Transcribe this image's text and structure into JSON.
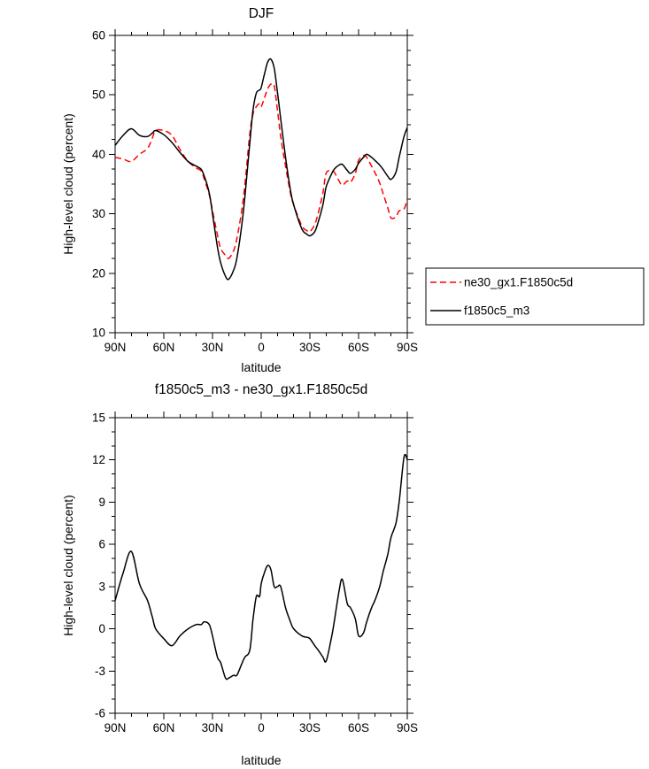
{
  "page": {
    "background": "#ffffff"
  },
  "chart_data": [
    {
      "type": "line",
      "title": "DJF",
      "xlabel": "latitude",
      "ylabel": "High-level cloud (percent)",
      "xlim": [
        90,
        -90
      ],
      "ylim": [
        10,
        60
      ],
      "x_ticks": [
        90,
        60,
        30,
        0,
        -30,
        -60,
        -90
      ],
      "x_tick_labels": [
        "90N",
        "60N",
        "30N",
        "0",
        "30S",
        "60S",
        "90S"
      ],
      "x_minor_step": 10,
      "y_ticks": [
        10,
        20,
        30,
        40,
        50,
        60
      ],
      "y_tick_labels": [
        "10",
        "20",
        "30",
        "40",
        "50",
        "60"
      ],
      "y_minor_step": 2.5,
      "grid": false,
      "legend": {
        "position": "outside-right",
        "entries": [
          "ne30_gx1.F1850c5d",
          "f1850c5_m3"
        ]
      },
      "x": [
        90,
        85,
        80,
        75,
        70,
        67,
        65,
        60,
        55,
        50,
        45,
        40,
        37,
        35,
        32,
        30,
        27,
        25,
        22,
        20,
        17,
        15,
        12,
        10,
        7,
        5,
        3,
        1,
        0,
        -2,
        -4,
        -6,
        -8,
        -10,
        -12,
        -15,
        -18,
        -20,
        -25,
        -28,
        -30,
        -33,
        -35,
        -38,
        -40,
        -43,
        -45,
        -48,
        -50,
        -53,
        -55,
        -58,
        -60,
        -63,
        -65,
        -68,
        -70,
        -73,
        -75,
        -78,
        -80,
        -83,
        -85,
        -88,
        -90
      ],
      "series": [
        {
          "name": "ne30_gx1.F1850c5d",
          "color": "#ff0000",
          "dash": "7,4",
          "values": [
            39.5,
            39.2,
            38.8,
            40.0,
            41.0,
            42.8,
            44.0,
            44.0,
            43.2,
            40.8,
            38.8,
            37.7,
            37.2,
            35.8,
            33.2,
            30.5,
            26.5,
            24.2,
            23.0,
            22.5,
            23.8,
            25.8,
            30.5,
            35.0,
            43.5,
            46.8,
            48.0,
            48.5,
            48.0,
            49.5,
            51.0,
            51.8,
            51.5,
            47.5,
            43.0,
            38.0,
            33.5,
            31.5,
            28.0,
            27.2,
            27.0,
            28.2,
            30.0,
            33.5,
            36.8,
            37.3,
            37.0,
            35.5,
            34.8,
            35.5,
            35.3,
            36.8,
            39.0,
            39.8,
            39.5,
            38.0,
            37.0,
            35.2,
            33.5,
            31.0,
            29.3,
            29.5,
            30.5,
            30.8,
            32.5
          ]
        },
        {
          "name": "f1850c5_m3",
          "color": "#000000",
          "dash": "",
          "values": [
            41.5,
            43.2,
            44.3,
            43.2,
            43.0,
            43.6,
            44.0,
            43.3,
            42.0,
            40.3,
            38.8,
            38.0,
            37.5,
            36.3,
            33.5,
            30.0,
            24.5,
            21.8,
            19.5,
            19.0,
            20.5,
            22.5,
            28.0,
            33.0,
            42.0,
            47.5,
            50.3,
            50.8,
            51.2,
            53.5,
            55.5,
            56.0,
            54.5,
            50.5,
            46.0,
            39.5,
            34.0,
            31.5,
            27.5,
            26.6,
            26.3,
            27.0,
            28.5,
            31.5,
            34.5,
            36.5,
            37.5,
            38.2,
            38.3,
            37.3,
            36.8,
            37.5,
            38.5,
            39.5,
            40.0,
            39.5,
            39.0,
            38.2,
            37.5,
            36.3,
            35.8,
            37.0,
            39.5,
            43.0,
            44.5
          ]
        }
      ]
    },
    {
      "type": "line",
      "title": "f1850c5_m3 - ne30_gx1.F1850c5d",
      "xlabel": "latitude",
      "ylabel": "High-level cloud (percent)",
      "xlim": [
        90,
        -90
      ],
      "ylim": [
        -6,
        15
      ],
      "x_ticks": [
        90,
        60,
        30,
        0,
        -30,
        -60,
        -90
      ],
      "x_tick_labels": [
        "90N",
        "60N",
        "30N",
        "0",
        "30S",
        "60S",
        "90S"
      ],
      "x_minor_step": 10,
      "y_ticks": [
        -6,
        -3,
        0,
        3,
        6,
        9,
        12,
        15
      ],
      "y_tick_labels": [
        "-6",
        "-3",
        "0",
        "3",
        "6",
        "9",
        "12",
        "15"
      ],
      "y_minor_step": 1,
      "grid": false,
      "x": [
        90,
        85,
        80,
        75,
        70,
        67,
        65,
        60,
        55,
        50,
        45,
        40,
        37,
        35,
        32,
        30,
        27,
        25,
        22,
        20,
        17,
        15,
        12,
        10,
        7,
        5,
        3,
        1,
        0,
        -2,
        -4,
        -6,
        -8,
        -10,
        -12,
        -15,
        -18,
        -20,
        -25,
        -28,
        -30,
        -33,
        -35,
        -38,
        -40,
        -43,
        -45,
        -48,
        -50,
        -53,
        -55,
        -58,
        -60,
        -63,
        -65,
        -68,
        -70,
        -73,
        -75,
        -78,
        -80,
        -83,
        -85,
        -88,
        -90
      ],
      "series": [
        {
          "name": "f1850c5_m3 - ne30_gx1.F1850c5d",
          "color": "#000000",
          "dash": "",
          "values": [
            2.0,
            4.0,
            5.5,
            3.2,
            2.0,
            0.8,
            0.0,
            -0.7,
            -1.2,
            -0.5,
            0.0,
            0.3,
            0.3,
            0.5,
            0.3,
            -0.5,
            -2.0,
            -2.4,
            -3.5,
            -3.5,
            -3.3,
            -3.3,
            -2.5,
            -2.0,
            -1.5,
            0.7,
            2.3,
            2.3,
            3.2,
            4.0,
            4.5,
            4.2,
            3.0,
            3.0,
            3.0,
            1.5,
            0.5,
            0.0,
            -0.5,
            -0.6,
            -0.7,
            -1.2,
            -1.5,
            -2.0,
            -2.3,
            -0.8,
            0.5,
            2.7,
            3.5,
            1.8,
            1.5,
            0.7,
            -0.5,
            -0.3,
            0.5,
            1.5,
            2.0,
            3.0,
            4.0,
            5.3,
            6.5,
            7.5,
            9.0,
            12.2,
            12.0
          ]
        }
      ]
    }
  ]
}
